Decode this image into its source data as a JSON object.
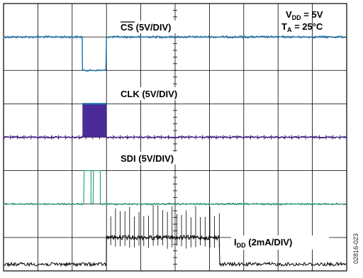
{
  "chart_data": {
    "type": "line",
    "title": "",
    "xlabel": "",
    "ylabel": "",
    "grid": true,
    "grid_divisions": {
      "x": 10,
      "y": 8
    },
    "supply_label": {
      "main": "V",
      "sub": "DD",
      "tail": " = 5V"
    },
    "temp_label": {
      "main": "T",
      "sub": "A",
      "tail": " = 25°C"
    },
    "figure_code": "02816-023",
    "x_unit": "div",
    "x_range": [
      0,
      10
    ],
    "y_range": [
      0,
      8
    ],
    "series": [
      {
        "key": "cs",
        "label_main": "CS",
        "label_tail": " (5V/DIV)",
        "label_overline": true,
        "color": "#1a6fa6",
        "level_high_div": 7.0,
        "level_low_div": 6.0,
        "low_from_div": 2.3,
        "low_to_div": 3.0
      },
      {
        "key": "clk",
        "label_main": "CLK",
        "label_tail": " (5V/DIV)",
        "color": "#4b2a9a",
        "level_high_div": 5.0,
        "level_low_div": 4.0,
        "burst_from_div": 2.3,
        "burst_to_div": 3.0
      },
      {
        "key": "sdi",
        "label_main": "SDI",
        "label_tail": " (5V/DIV)",
        "color": "#2fa37a",
        "level_high_div": 3.0,
        "level_low_div": 2.0,
        "pulses_div": [
          [
            2.35,
            2.55
          ],
          [
            2.62,
            2.82
          ]
        ]
      },
      {
        "key": "idd",
        "label_main": "I",
        "label_sub": "DD",
        "label_tail": " (2mA/DIV)",
        "color": "#000000",
        "baseline_div": 0.2,
        "active_level_div": 1.0,
        "active_from_div": 3.0,
        "active_to_div": 6.3
      }
    ]
  }
}
